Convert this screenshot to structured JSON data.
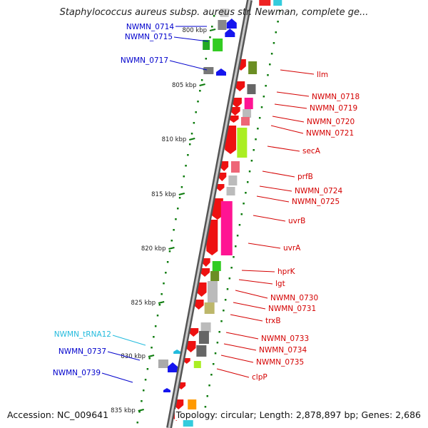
{
  "title": "Staphylococcus aureus subsp. aureus str. Newman, complete ge...",
  "footer": {
    "accession": "Accession: NC_009641",
    "summary": "Topology: circular; Length: 2,878,897 bp; Genes: 2,686"
  },
  "colors": {
    "forward_label": "#d40000",
    "reverse_label": "#0000cc",
    "trna_label": "#22bbdd",
    "ruler": "#0a7a0a"
  },
  "ruler_ticks": [
    "800 kbp",
    "805 kbp",
    "810 kbp",
    "815 kbp",
    "820 kbp",
    "825 kbp",
    "830 kbp",
    "835 kbp"
  ],
  "reverse_labels": [
    "NWMN_0714",
    "NWMN_0715",
    "NWMN_0717",
    "NWMN_0737",
    "NWMN_0739"
  ],
  "trna_labels": [
    "NWMN_tRNA12"
  ],
  "forward_labels": [
    "llm",
    "NWMN_0718",
    "NWMN_0719",
    "NWMN_0720",
    "NWMN_0721",
    "secA",
    "prfB",
    "NWMN_0724",
    "NWMN_0725",
    "uvrB",
    "uvrA",
    "hprK",
    "lgt",
    "NWMN_0730",
    "NWMN_0731",
    "trxB",
    "NWMN_0733",
    "NWMN_0734",
    "NWMN_0735",
    "clpP"
  ]
}
